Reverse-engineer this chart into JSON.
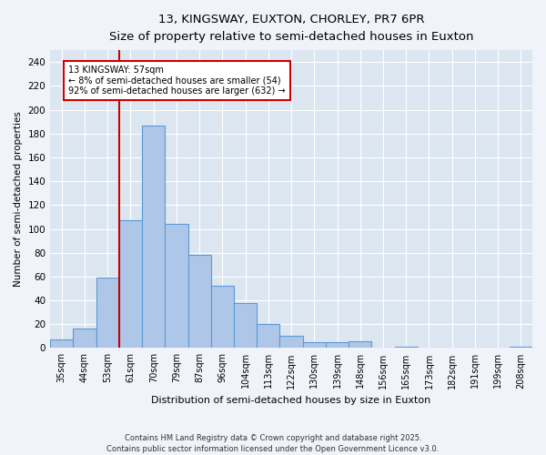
{
  "title_line1": "13, KINGSWAY, EUXTON, CHORLEY, PR7 6PR",
  "title_line2": "Size of property relative to semi-detached houses in Euxton",
  "xlabel": "Distribution of semi-detached houses by size in Euxton",
  "ylabel": "Number of semi-detached properties",
  "categories": [
    "35sqm",
    "44sqm",
    "53sqm",
    "61sqm",
    "70sqm",
    "79sqm",
    "87sqm",
    "96sqm",
    "104sqm",
    "113sqm",
    "122sqm",
    "130sqm",
    "139sqm",
    "148sqm",
    "156sqm",
    "165sqm",
    "173sqm",
    "182sqm",
    "191sqm",
    "199sqm",
    "208sqm"
  ],
  "values": [
    7,
    16,
    59,
    107,
    187,
    104,
    78,
    52,
    38,
    20,
    10,
    5,
    5,
    6,
    0,
    1,
    0,
    0,
    0,
    0,
    1
  ],
  "bar_color": "#aec6e8",
  "bar_edge_color": "#5b9bd5",
  "annotation_text": "13 KINGSWAY: 57sqm\n← 8% of semi-detached houses are smaller (54)\n92% of semi-detached houses are larger (632) →",
  "annotation_box_color": "#ffffff",
  "annotation_box_edge": "#cc0000",
  "vline_x_index": 2,
  "vline_color": "#cc0000",
  "ylim": [
    0,
    250
  ],
  "yticks": [
    0,
    20,
    40,
    60,
    80,
    100,
    120,
    140,
    160,
    180,
    200,
    220,
    240
  ],
  "background_color": "#dce6f1",
  "grid_color": "#ffffff",
  "fig_background": "#f0f4fa",
  "footer": "Contains HM Land Registry data © Crown copyright and database right 2025.\nContains public sector information licensed under the Open Government Licence v3.0."
}
